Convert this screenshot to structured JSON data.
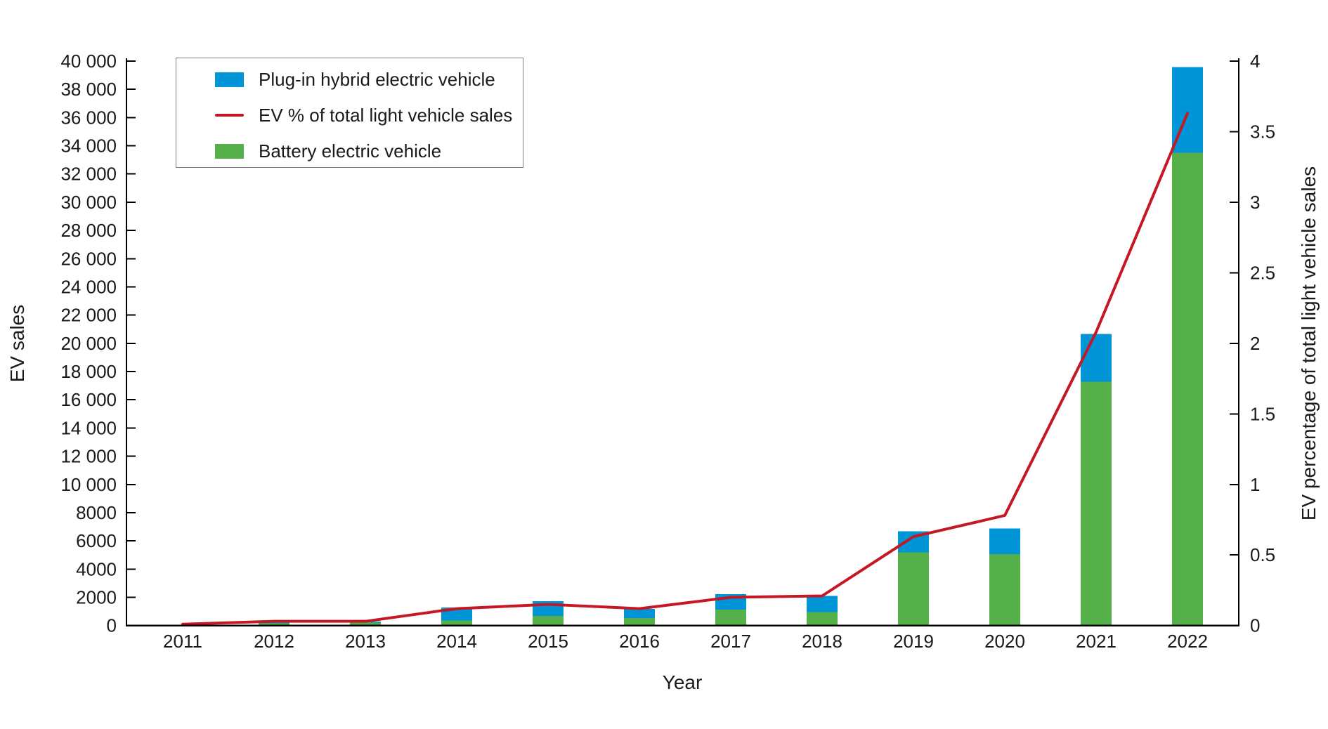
{
  "chart_data": {
    "type": "bar",
    "subtype": "stacked-bars-with-line-overlay",
    "categories": [
      "2011",
      "2012",
      "2013",
      "2014",
      "2015",
      "2016",
      "2017",
      "2018",
      "2019",
      "2020",
      "2021",
      "2022"
    ],
    "series": [
      {
        "name": "Battery electric vehicle",
        "color": "#56b04a",
        "stack_position": "bottom",
        "values": [
          30,
          160,
          200,
          370,
          670,
          530,
          1120,
          950,
          5180,
          5060,
          17270,
          33500
        ]
      },
      {
        "name": "Plug-in hybrid electric vehicle",
        "color": "#0095d6",
        "stack_position": "top",
        "values": [
          10,
          100,
          80,
          910,
          1060,
          640,
          1110,
          1160,
          1490,
          1830,
          3400,
          6080
        ]
      }
    ],
    "line_series": {
      "name": "EV % of total light vehicle sales",
      "color": "#c51825",
      "axis": "right",
      "values": [
        0.01,
        0.03,
        0.03,
        0.12,
        0.15,
        0.12,
        0.2,
        0.21,
        0.63,
        0.78,
        2.08,
        3.63
      ]
    },
    "title": "",
    "xlabel": "Year",
    "ylabel_left": "EV sales",
    "ylabel_right": "EV percentage of total light vehicle sales",
    "ylim_left": [
      0,
      40000
    ],
    "ytick_step_left": 2000,
    "yticks_left_labels": [
      "0",
      "2000",
      "4000",
      "6000",
      "8000",
      "10 000",
      "12 000",
      "14 000",
      "16 000",
      "18 000",
      "20 000",
      "22 000",
      "24 000",
      "26 000",
      "28 000",
      "30 000",
      "32 000",
      "34 000",
      "36 000",
      "38 000",
      "40 000"
    ],
    "ylim_right": [
      0,
      4
    ],
    "ytick_step_right": 0.5,
    "yticks_right_labels": [
      "0",
      "0.5",
      "1",
      "1.5",
      "2",
      "2.5",
      "3",
      "3.5",
      "4"
    ],
    "grid": false,
    "legend_position": "upper left",
    "axis_color": "#000000",
    "tick_direction": "in"
  },
  "legend": {
    "entries": [
      {
        "label": "Plug-in hybrid electric vehicle",
        "marker": "patch",
        "color": "#0095d6"
      },
      {
        "label": "EV % of total light vehicle sales",
        "marker": "line",
        "color": "#c51825"
      },
      {
        "label": "Battery electric vehicle",
        "marker": "patch",
        "color": "#56b04a"
      }
    ]
  }
}
